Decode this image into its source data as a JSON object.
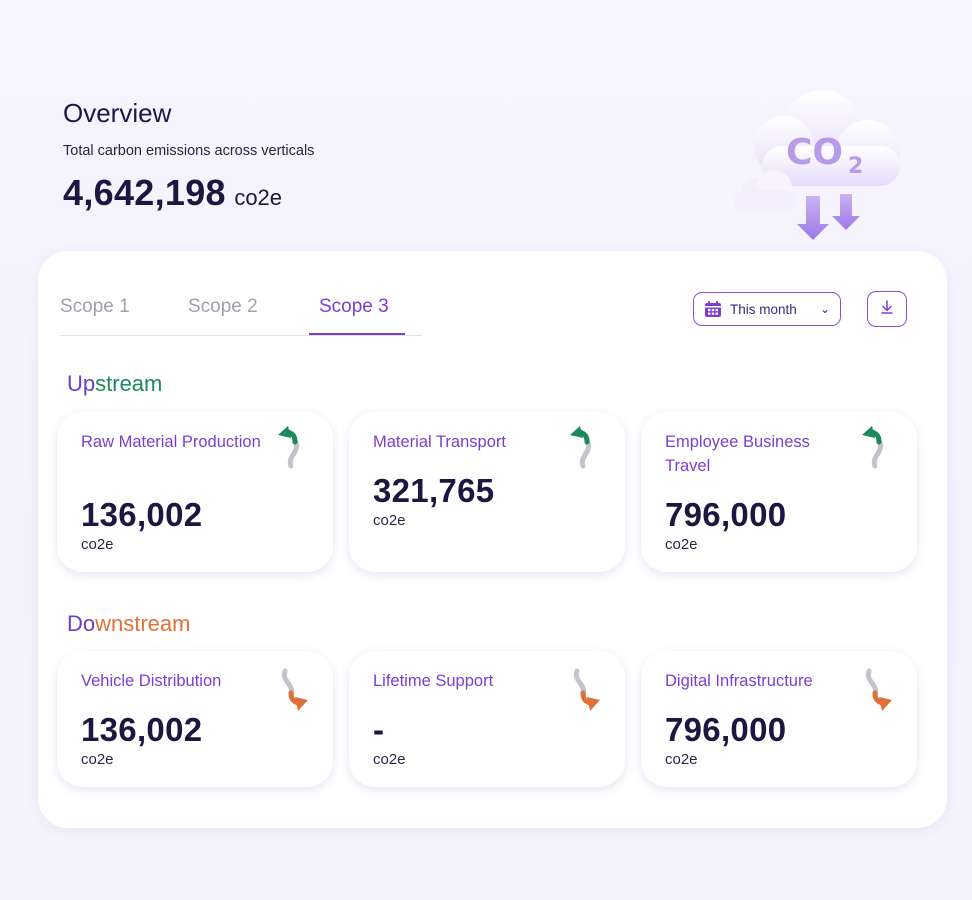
{
  "overview": {
    "title": "Overview",
    "subtitle": "Total carbon emissions across verticals",
    "total_value": "4,642,198",
    "total_unit": "co2e"
  },
  "illustration": {
    "icon": "co2-cloud-icon",
    "text": "CO",
    "subscript": "2"
  },
  "tabs": [
    {
      "label": "Scope 1",
      "active": false
    },
    {
      "label": "Scope 2",
      "active": false
    },
    {
      "label": "Scope 3",
      "active": true
    }
  ],
  "filters": {
    "date_label": "This month",
    "date_icon": "calendar-icon",
    "download_icon": "download-icon"
  },
  "upstream": {
    "title_a": "Up",
    "title_b": "stream",
    "cards": [
      {
        "label": "Raw Material Production",
        "value": "136,002",
        "unit": "co2e",
        "trend": "up"
      },
      {
        "label": "Material Transport",
        "value": "321,765",
        "unit": "co2e",
        "trend": "up"
      },
      {
        "label": "Employee Business Travel",
        "value": "796,000",
        "unit": "co2e",
        "trend": "up"
      }
    ]
  },
  "downstream": {
    "title_a": "Do",
    "title_b": "wnstream",
    "cards": [
      {
        "label": "Vehicle Distribution",
        "value": "136,002",
        "unit": "co2e",
        "trend": "down"
      },
      {
        "label": "Lifetime Support",
        "value": "-",
        "unit": "co2e",
        "trend": "down"
      },
      {
        "label": "Digital Infrastructure",
        "value": "796,000",
        "unit": "co2e",
        "trend": "down"
      }
    ]
  },
  "colors": {
    "accent": "#7b3fd0",
    "upstream": "#1b8a5a",
    "downstream": "#e0703a",
    "text_dark": "#1c1640"
  }
}
